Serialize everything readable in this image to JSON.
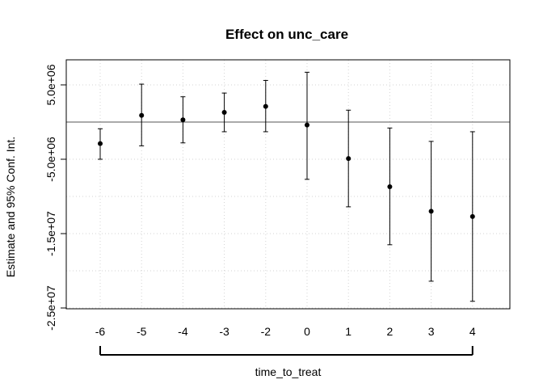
{
  "chart_data": {
    "type": "scatter",
    "title": "Effect on unc_care",
    "xlabel": "time_to_treat",
    "ylabel": "Estimate and 95% Conf. Int.",
    "categories": [
      "-6",
      "-5",
      "-4",
      "-3",
      "-2",
      "0",
      "1",
      "2",
      "3",
      "4"
    ],
    "y_ticks": [
      5000000,
      -5000000,
      -15000000,
      -25000000
    ],
    "y_tick_labels": [
      "5.0e+06",
      "-5.0e+06",
      "-1.5e+07",
      "-2.5e+07"
    ],
    "ylim": [
      -25000000,
      8000000
    ],
    "reference_line": 0,
    "grid": true,
    "series": [
      {
        "estimate": [
          -2900000,
          900000,
          300000,
          1300000,
          2100000,
          -400000,
          -4900000,
          -8700000,
          -12000000,
          -12700000
        ],
        "ci_low": [
          -5000000,
          -3200000,
          -2800000,
          -1300000,
          -1300000,
          -7700000,
          -11400000,
          -16500000,
          -21400000,
          -24100000
        ],
        "ci_high": [
          -900000,
          5100000,
          3400000,
          3900000,
          5600000,
          6700000,
          1600000,
          -800000,
          -2600000,
          -1300000
        ]
      }
    ],
    "bracket": {
      "from": "-6",
      "to": "4"
    }
  }
}
